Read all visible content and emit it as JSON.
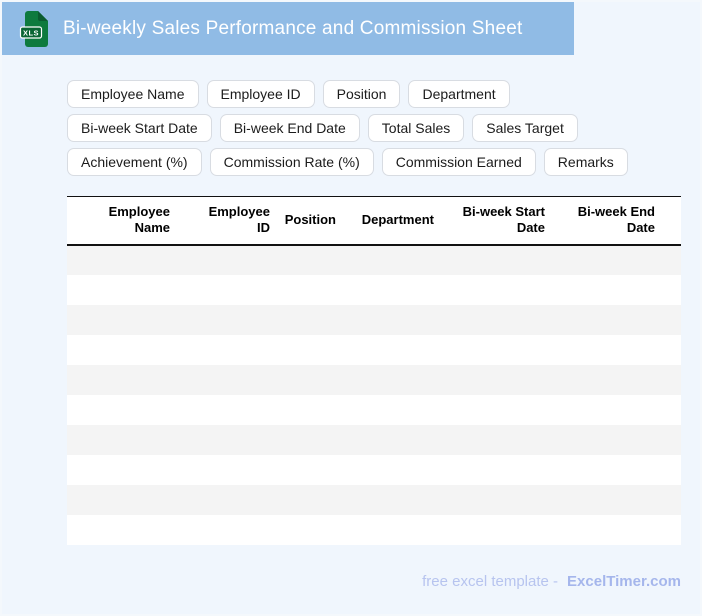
{
  "titlebar": {
    "title": "Bi-weekly Sales Performance and Commission Sheet",
    "file_icon_label": "XLS"
  },
  "chips": [
    "Employee Name",
    "Employee ID",
    "Position",
    "Department",
    "Bi-week Start Date",
    "Bi-week End Date",
    "Total Sales",
    "Sales Target",
    "Achievement (%)",
    "Commission Rate (%)",
    "Commission Earned",
    "Remarks"
  ],
  "table": {
    "columns": [
      "Employee Name",
      "Employee ID",
      "Position",
      "Department",
      "Bi-week Start Date",
      "Bi-week End Date"
    ],
    "empty_row_count": 10
  },
  "footer": {
    "tagline": "free excel template -",
    "brand": "ExcelTimer.com"
  },
  "colors": {
    "titlebar_bg": "#90bbe5",
    "page_bg": "#f0f6fd",
    "icon_green": "#0e7a3e",
    "icon_band_green": "#0b6534",
    "stripe_gray": "#f4f4f4",
    "chip_border": "#d8dce2",
    "table_rule": "#111111",
    "footer_text": "#b7c4ef",
    "footer_brand": "#a5b6ec"
  }
}
